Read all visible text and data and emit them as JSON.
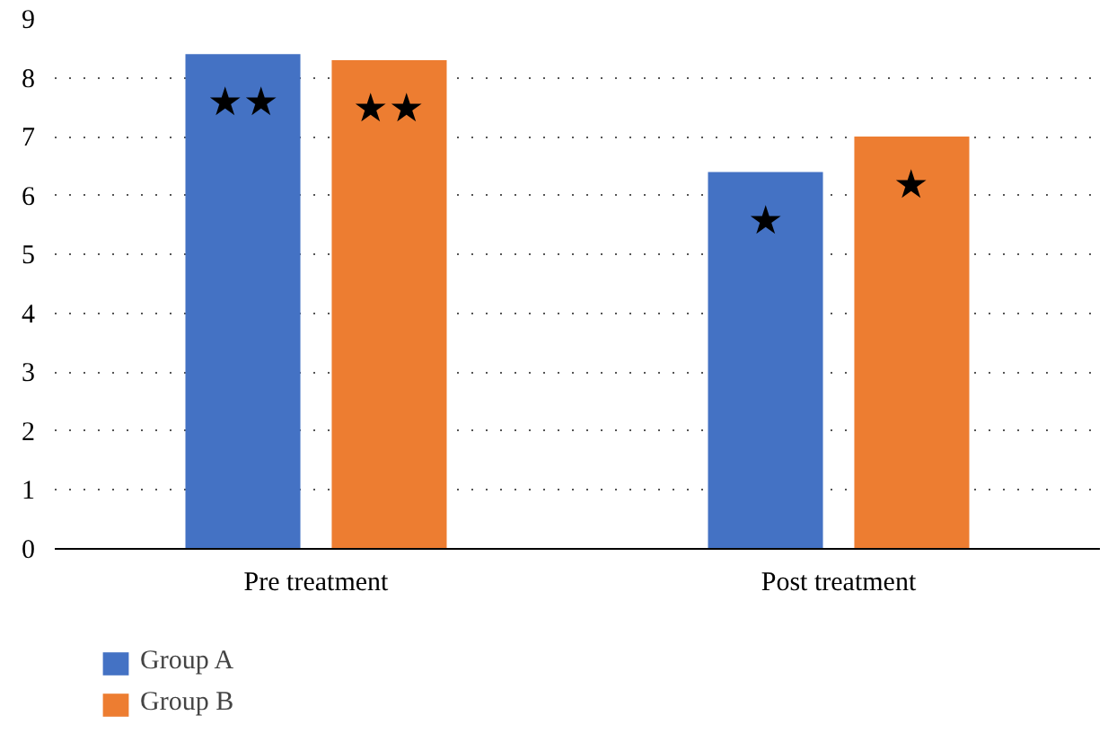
{
  "chart_data": {
    "type": "bar",
    "categories": [
      "Pre treatment",
      "Post treatment"
    ],
    "series": [
      {
        "name": "Group A",
        "color": "#4472c4",
        "values": [
          8.4,
          6.4
        ]
      },
      {
        "name": "Group B",
        "color": "#ed7d31",
        "values": [
          8.3,
          7.0
        ]
      }
    ],
    "ylim": [
      0,
      9
    ],
    "yticks": [
      0,
      1,
      2,
      3,
      4,
      5,
      6,
      7,
      8,
      9
    ],
    "grid": "y",
    "legend": "bottom left",
    "annotations": [
      "★★",
      "★★",
      "★",
      "★"
    ]
  }
}
